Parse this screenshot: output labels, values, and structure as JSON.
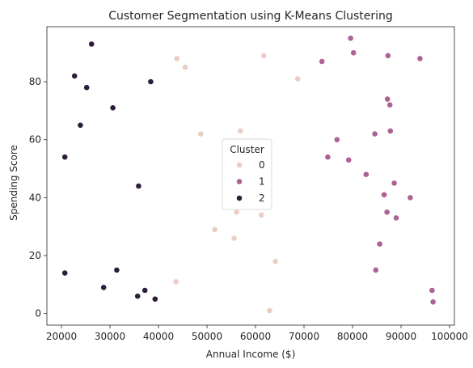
{
  "chart_data": {
    "type": "scatter",
    "title": "Customer Segmentation using K-Means Clustering",
    "xlabel": "Annual Income ($)",
    "ylabel": "Spending Score",
    "xlim": [
      17000,
      101000
    ],
    "ylim": [
      -4,
      99
    ],
    "xticks": [
      20000,
      30000,
      40000,
      50000,
      60000,
      70000,
      80000,
      90000,
      100000
    ],
    "xtick_labels": [
      "20000",
      "30000",
      "40000",
      "50000",
      "60000",
      "70000",
      "80000",
      "90000",
      "100000"
    ],
    "yticks": [
      0,
      20,
      40,
      60,
      80
    ],
    "ytick_labels": [
      "0",
      "20",
      "40",
      "60",
      "80"
    ],
    "grid": false,
    "legend": {
      "title": "Cluster",
      "placement": "center",
      "entries": [
        {
          "label": "0",
          "color": "#ebcdc4"
        },
        {
          "label": "1",
          "color": "#ac6294"
        },
        {
          "label": "2",
          "color": "#2e1e3c"
        }
      ]
    },
    "series": [
      {
        "name": "0",
        "color": "#ebcdc4",
        "points": [
          {
            "x": 43800,
            "y": 88
          },
          {
            "x": 45500,
            "y": 85
          },
          {
            "x": 61700,
            "y": 89
          },
          {
            "x": 68700,
            "y": 81
          },
          {
            "x": 48700,
            "y": 62
          },
          {
            "x": 56900,
            "y": 63
          },
          {
            "x": 56100,
            "y": 35
          },
          {
            "x": 61200,
            "y": 34
          },
          {
            "x": 51600,
            "y": 29
          },
          {
            "x": 55600,
            "y": 26
          },
          {
            "x": 64100,
            "y": 18
          },
          {
            "x": 43600,
            "y": 11
          },
          {
            "x": 62900,
            "y": 1
          },
          {
            "x": 86700,
            "y": 41
          }
        ]
      },
      {
        "name": "1",
        "color": "#ac6294",
        "points": [
          {
            "x": 79600,
            "y": 95
          },
          {
            "x": 80200,
            "y": 90
          },
          {
            "x": 87300,
            "y": 89
          },
          {
            "x": 93900,
            "y": 88
          },
          {
            "x": 73700,
            "y": 87
          },
          {
            "x": 87200,
            "y": 74
          },
          {
            "x": 87700,
            "y": 72
          },
          {
            "x": 87800,
            "y": 63
          },
          {
            "x": 84600,
            "y": 62
          },
          {
            "x": 76800,
            "y": 60
          },
          {
            "x": 74900,
            "y": 54
          },
          {
            "x": 79200,
            "y": 53
          },
          {
            "x": 88600,
            "y": 45
          },
          {
            "x": 82800,
            "y": 48
          },
          {
            "x": 86500,
            "y": 41
          },
          {
            "x": 91900,
            "y": 40
          },
          {
            "x": 87100,
            "y": 35
          },
          {
            "x": 89000,
            "y": 33
          },
          {
            "x": 85600,
            "y": 24
          },
          {
            "x": 84800,
            "y": 15
          },
          {
            "x": 96400,
            "y": 8
          },
          {
            "x": 96600,
            "y": 4
          }
        ]
      },
      {
        "name": "2",
        "color": "#2e1e3c",
        "points": [
          {
            "x": 26200,
            "y": 93
          },
          {
            "x": 22700,
            "y": 82
          },
          {
            "x": 25200,
            "y": 78
          },
          {
            "x": 38400,
            "y": 80
          },
          {
            "x": 30600,
            "y": 71
          },
          {
            "x": 23900,
            "y": 65
          },
          {
            "x": 20700,
            "y": 54
          },
          {
            "x": 35900,
            "y": 44
          },
          {
            "x": 31400,
            "y": 15
          },
          {
            "x": 20700,
            "y": 14
          },
          {
            "x": 28700,
            "y": 9
          },
          {
            "x": 37200,
            "y": 8
          },
          {
            "x": 35700,
            "y": 6
          },
          {
            "x": 39300,
            "y": 5
          }
        ]
      }
    ]
  }
}
